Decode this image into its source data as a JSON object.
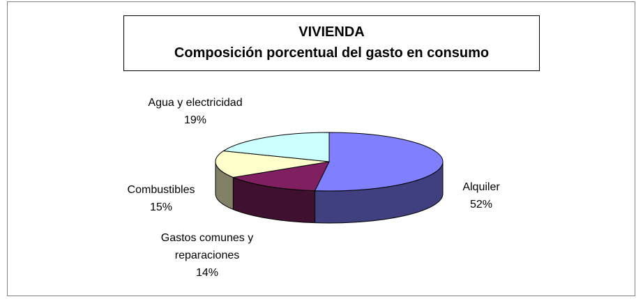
{
  "chart_data": {
    "type": "pie3d",
    "title": "VIVIENDA",
    "subtitle": "Composición porcentual del gasto en consumo",
    "categories": [
      "Alquiler",
      "Gastos comunes y reparaciones",
      "Combustibles",
      "Agua y electricidad"
    ],
    "values": [
      52,
      14,
      15,
      19
    ],
    "value_labels": [
      "52%",
      "14%",
      "15%",
      "19%"
    ],
    "colors": [
      "#8080ff",
      "#802060",
      "#ffffcc",
      "#ccffff"
    ]
  }
}
